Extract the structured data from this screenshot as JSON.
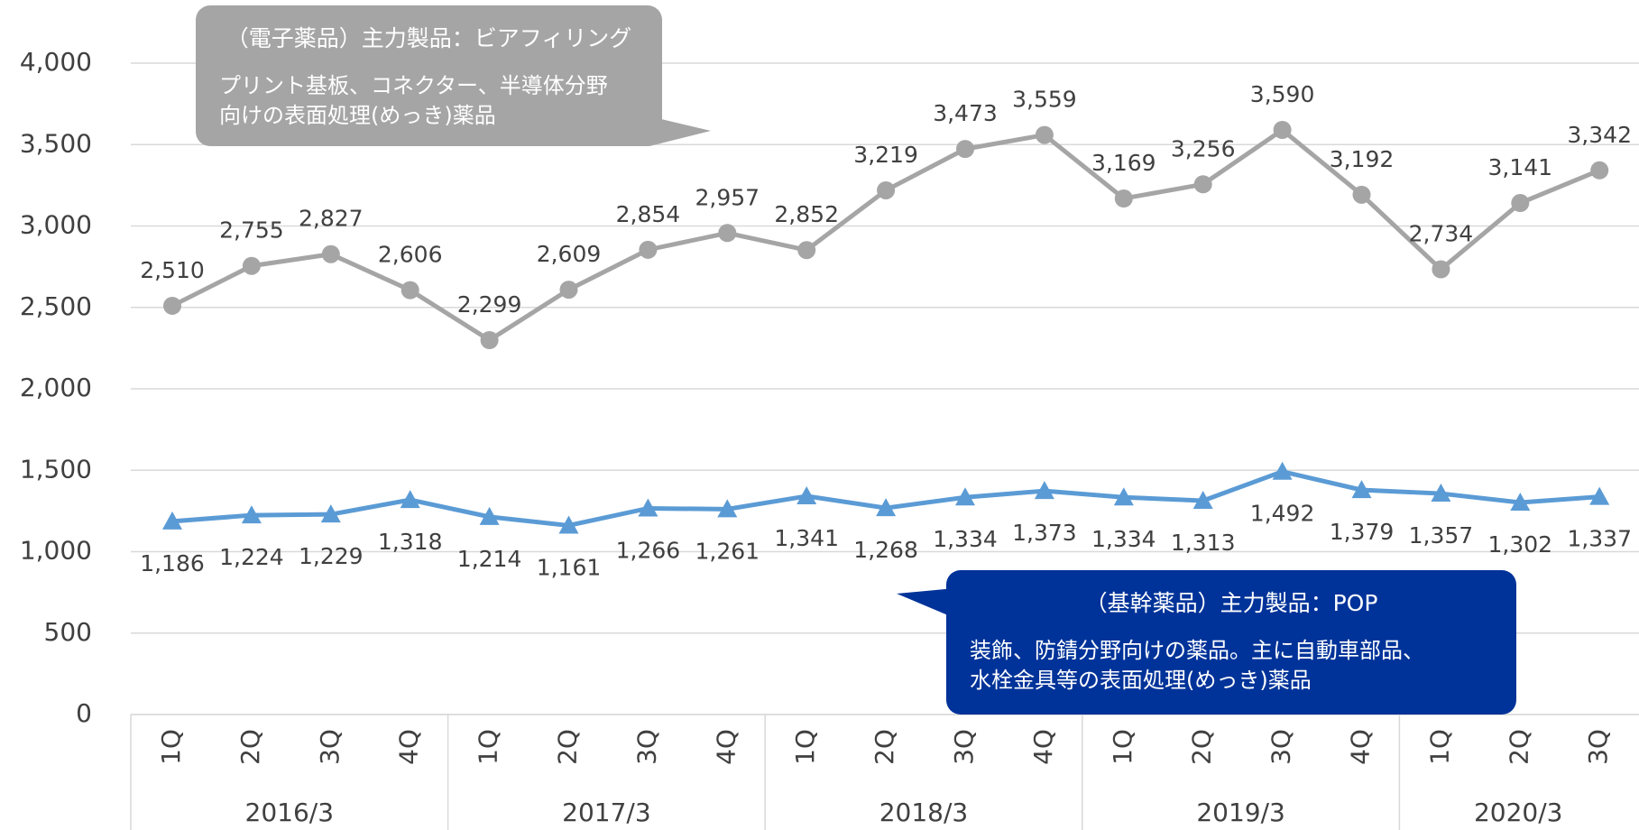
{
  "chart_data": {
    "type": "line",
    "categories": [
      "1Q",
      "2Q",
      "3Q",
      "4Q",
      "1Q",
      "2Q",
      "3Q",
      "4Q",
      "1Q",
      "2Q",
      "3Q",
      "4Q",
      "1Q",
      "2Q",
      "3Q",
      "4Q",
      "1Q",
      "2Q",
      "3Q"
    ],
    "groups": [
      {
        "label": "2016/3",
        "span": 4
      },
      {
        "label": "2017/3",
        "span": 4
      },
      {
        "label": "2018/3",
        "span": 4
      },
      {
        "label": "2019/3",
        "span": 4
      },
      {
        "label": "2020/3",
        "span": 3
      }
    ],
    "series": [
      {
        "name": "電子薬品",
        "color": "#a5a5a5",
        "marker": "circle",
        "values": [
          2510,
          2755,
          2827,
          2606,
          2299,
          2609,
          2854,
          2957,
          2852,
          3219,
          3473,
          3559,
          3169,
          3256,
          3590,
          3192,
          2734,
          3141,
          3342
        ],
        "value_labels": [
          "2,510",
          "2,755",
          "2,827",
          "2,606",
          "2,299",
          "2,609",
          "2,854",
          "2,957",
          "2,852",
          "3,219",
          "3,473",
          "3,559",
          "3,169",
          "3,256",
          "3,590",
          "3,192",
          "2,734",
          "3,141",
          "3,342"
        ]
      },
      {
        "name": "基幹薬品",
        "color": "#5b9bd5",
        "marker": "triangle",
        "values": [
          1186,
          1224,
          1229,
          1318,
          1214,
          1161,
          1266,
          1261,
          1341,
          1268,
          1334,
          1373,
          1334,
          1313,
          1492,
          1379,
          1357,
          1302,
          1337
        ],
        "value_labels": [
          "1,186",
          "1,224",
          "1,229",
          "1,318",
          "1,214",
          "1,161",
          "1,266",
          "1,261",
          "1,341",
          "1,268",
          "1,334",
          "1,373",
          "1,334",
          "1,313",
          "1,492",
          "1,379",
          "1,357",
          "1,302",
          "1,337"
        ]
      }
    ],
    "ylim": [
      0,
      4000
    ],
    "yticks": [
      0,
      500,
      {
        "value": 1000,
        "label": "1,000"
      },
      {
        "value": 1500,
        "label": "1,500"
      },
      {
        "value": 2000,
        "label": "2,000"
      },
      {
        "value": 2500,
        "label": "2,500"
      },
      {
        "value": 3000,
        "label": "3,000"
      },
      {
        "value": 3500,
        "label": "3,500"
      },
      {
        "value": 4000,
        "label": "4,000"
      }
    ],
    "grid": true,
    "annotations": [
      {
        "title": "（電子薬品）主力製品：ビアフィリング",
        "lines": [
          "プリント基板、コネクター、半導体分野",
          "向けの表面処理(めっき)薬品"
        ],
        "color": "#a5a5a5"
      },
      {
        "title": "（基幹薬品）主力製品：POP",
        "lines": [
          "装飾、防錆分野向けの薬品。主に自動車部品、",
          "水栓金具等の表面処理(めっき)薬品"
        ],
        "color": "#003399"
      }
    ]
  }
}
